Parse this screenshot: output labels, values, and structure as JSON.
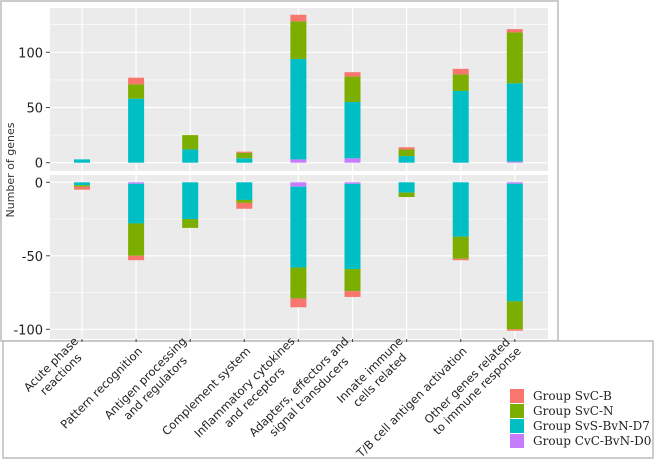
{
  "chart_data": {
    "type": "bar",
    "stacked": true,
    "ylabel": "Number of genes",
    "panels": [
      {
        "direction": "up",
        "ylim": [
          0,
          135
        ],
        "yticks": [
          "0",
          "50",
          "100"
        ],
        "ytick_values": [
          0,
          50,
          100
        ]
      },
      {
        "direction": "down",
        "ylim": [
          -103,
          0
        ],
        "yticks": [
          "0",
          "-50",
          "-100"
        ],
        "ytick_values": [
          0,
          -50,
          -100
        ]
      }
    ],
    "categories": [
      [
        "Acute phase",
        "reactions"
      ],
      [
        "Pattern recognition"
      ],
      [
        "Antigen processing",
        "and regulators"
      ],
      [
        "Complement system"
      ],
      [
        "Inflammatory cytokines",
        "and receptors"
      ],
      [
        "Adapters, effectors and",
        "signal transducers"
      ],
      [
        "Innate immune",
        "cells related"
      ],
      [
        "T/B cell antigen activation"
      ],
      [
        "Other genes related",
        "to immune response"
      ]
    ],
    "series": [
      {
        "name": "Group  CvC-BvN-D0",
        "color": "#C77CFF",
        "up": [
          0,
          0,
          0,
          0,
          3,
          4,
          0,
          0,
          1
        ],
        "down": [
          0,
          1,
          0,
          0,
          3,
          1,
          0,
          0,
          1
        ]
      },
      {
        "name": "Group  SvS-BvN-D7",
        "color": "#00BFC4",
        "up": [
          3,
          58,
          12,
          4,
          91,
          51,
          6,
          65,
          71
        ],
        "down": [
          2,
          27,
          25,
          12,
          55,
          58,
          7,
          37,
          80
        ]
      },
      {
        "name": "Group  SvC-N",
        "color": "#7CAE00",
        "up": [
          0,
          13,
          13,
          5,
          34,
          23,
          6,
          15,
          46
        ],
        "down": [
          1,
          22,
          6,
          2,
          21,
          15,
          3,
          15,
          19
        ]
      },
      {
        "name": "Group  SvC-B",
        "color": "#F8766D",
        "up": [
          0,
          6,
          0,
          1,
          6,
          4,
          2,
          5,
          3
        ],
        "down": [
          2,
          3,
          0,
          4,
          6,
          4,
          0,
          1,
          1
        ]
      }
    ],
    "legend_order": [
      "Group  SvC-B",
      "Group  SvC-N",
      "Group  SvS-BvN-D7",
      "Group  CvC-BvN-D0"
    ],
    "legend_position": "bottom-right",
    "grid": true
  }
}
